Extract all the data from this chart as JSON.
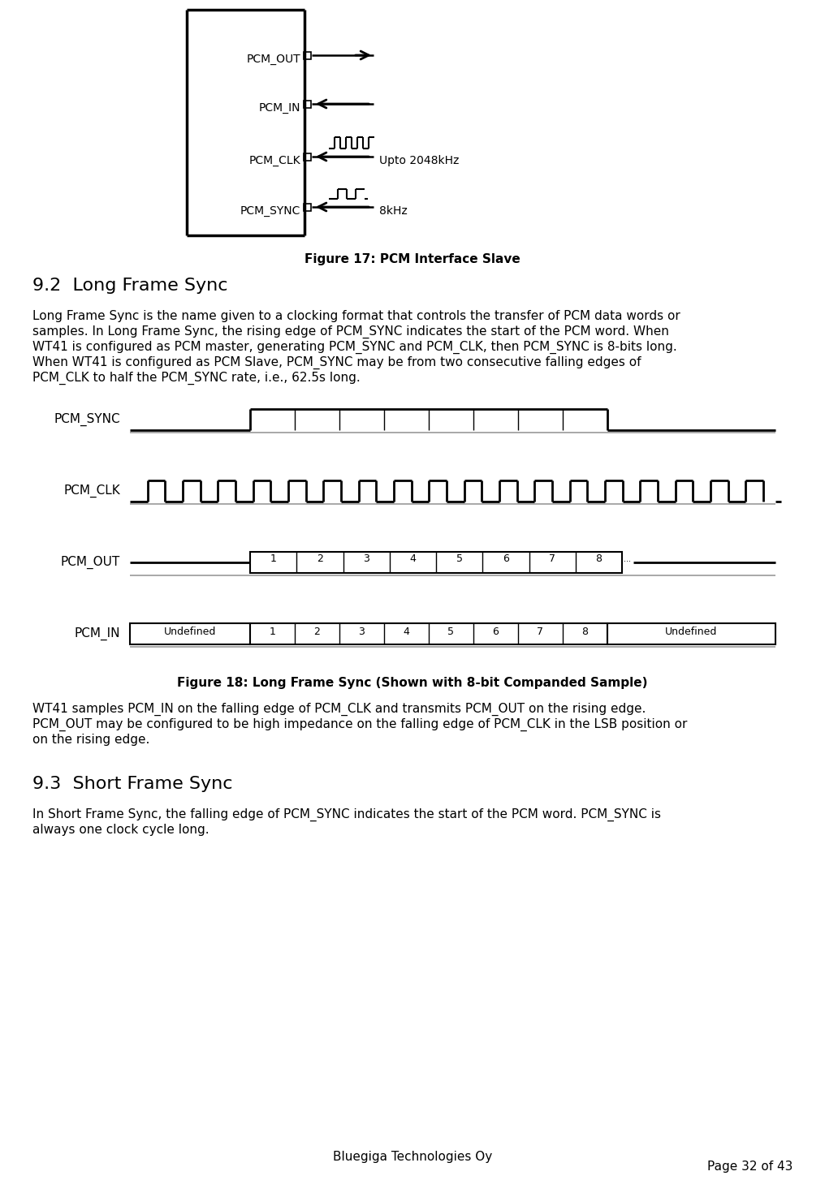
{
  "bg_color": "#ffffff",
  "fig_width": 10.16,
  "fig_height": 14.54,
  "dpi": 100,
  "fig17_caption": "Figure 17: PCM Interface Slave",
  "fig18_caption": "Figure 18: Long Frame Sync (Shown with 8-bit Companded Sample)",
  "section_92_title": "9.2  Long Frame Sync",
  "section_93_title": "9.3  Short Frame Sync",
  "lines_92": [
    "Long Frame Sync is the name given to a clocking format that controls the transfer of PCM data words or",
    "samples. In Long Frame Sync, the rising edge of PCM_SYNC indicates the start of the PCM word. When",
    "WT41 is configured as PCM master, generating PCM_SYNC and PCM_CLK, then PCM_SYNC is 8-bits long.",
    "When WT41 is configured as PCM Slave, PCM_SYNC may be from two consecutive falling edges of",
    "PCM_CLK to half the PCM_SYNC rate, i.e., 62.5s long."
  ],
  "lines_samples": [
    "WT41 samples PCM_IN on the falling edge of PCM_CLK and transmits PCM_OUT on the rising edge.",
    "PCM_OUT may be configured to be high impedance on the falling edge of PCM_CLK in the LSB position or",
    "on the rising edge."
  ],
  "lines_93": [
    "In Short Frame Sync, the falling edge of PCM_SYNC indicates the start of the PCM word. PCM_SYNC is",
    "always one clock cycle long."
  ],
  "footer_text": "Bluegiga Technologies Oy",
  "page_text": "Page 32 of 43",
  "clk_label": "Upto 2048kHz",
  "sync_label": "8kHz",
  "undefined_label": "Undefined"
}
